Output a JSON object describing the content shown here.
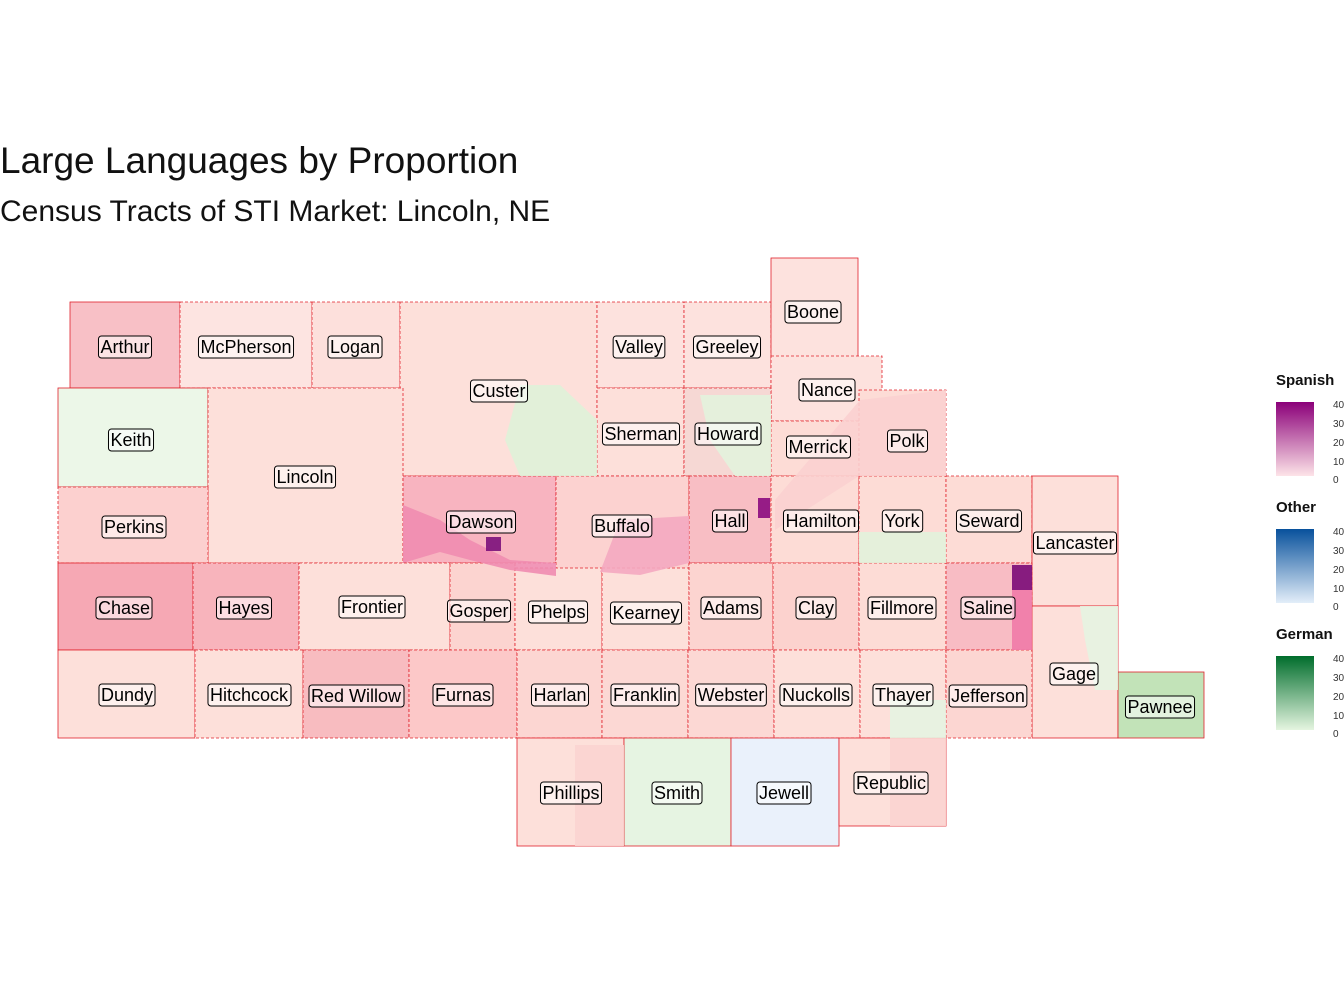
{
  "title": "Large Languages by Proportion",
  "subtitle": "Census Tracts of STI Market: Lincoln, NE",
  "legends": [
    {
      "name": "Spanish",
      "ticks": [
        "40",
        "30",
        "20",
        "10",
        "0"
      ],
      "color_low": "#fde4e8",
      "color_high": "#8b0079"
    },
    {
      "name": "Other",
      "ticks": [
        "40",
        "30",
        "20",
        "10",
        "0"
      ],
      "color_low": "#e3eef9",
      "color_high": "#08519c"
    },
    {
      "name": "German",
      "ticks": [
        "40",
        "30",
        "20",
        "10",
        "0"
      ],
      "color_low": "#e5f5e0",
      "color_high": "#006d2c"
    }
  ],
  "counties": [
    {
      "name": "Arthur",
      "fill": "#f8c0c6"
    },
    {
      "name": "McPherson",
      "fill": "#fde4e1"
    },
    {
      "name": "Logan",
      "fill": "#fde0dc"
    },
    {
      "name": "Custer",
      "fill": "#fde0da"
    },
    {
      "name": "Valley",
      "fill": "#fde2de"
    },
    {
      "name": "Greeley",
      "fill": "#fde2de"
    },
    {
      "name": "Boone",
      "fill": "#fde2de"
    },
    {
      "name": "Nance",
      "fill": "#fde2de"
    },
    {
      "name": "Keith",
      "fill": "#ecf7e8"
    },
    {
      "name": "Lincoln",
      "fill": "#fde0da"
    },
    {
      "name": "Sherman",
      "fill": "#fde0da"
    },
    {
      "name": "Howard",
      "fill": "#f6d8d4"
    },
    {
      "name": "Merrick",
      "fill": "#fddcd6"
    },
    {
      "name": "Polk",
      "fill": "#fddcd6"
    },
    {
      "name": "Perkins",
      "fill": "#fcd0cf"
    },
    {
      "name": "Dawson",
      "fill": "#f8b4c0"
    },
    {
      "name": "Buffalo",
      "fill": "#fcd2d0"
    },
    {
      "name": "Hall",
      "fill": "#f8bec4"
    },
    {
      "name": "Hamilton",
      "fill": "#fddcd6"
    },
    {
      "name": "York",
      "fill": "#fddcd6"
    },
    {
      "name": "Seward",
      "fill": "#fddcd6"
    },
    {
      "name": "Lancaster",
      "fill": "#fde0da"
    },
    {
      "name": "Chase",
      "fill": "#f6a8b4"
    },
    {
      "name": "Hayes",
      "fill": "#f8b4bc"
    },
    {
      "name": "Frontier",
      "fill": "#fde0da"
    },
    {
      "name": "Gosper",
      "fill": "#fcd4d0"
    },
    {
      "name": "Phelps",
      "fill": "#fde0da"
    },
    {
      "name": "Kearney",
      "fill": "#fde0da"
    },
    {
      "name": "Adams",
      "fill": "#fcd4d0"
    },
    {
      "name": "Clay",
      "fill": "#fcd2ce"
    },
    {
      "name": "Fillmore",
      "fill": "#fddcd6"
    },
    {
      "name": "Saline",
      "fill": "#f8bcc4"
    },
    {
      "name": "Gage",
      "fill": "#fde0da"
    },
    {
      "name": "Dundy",
      "fill": "#fde0da"
    },
    {
      "name": "Hitchcock",
      "fill": "#fde0da"
    },
    {
      "name": "Red Willow",
      "fill": "#f8bcc0"
    },
    {
      "name": "Furnas",
      "fill": "#fcc8c8"
    },
    {
      "name": "Harlan",
      "fill": "#fcd6d2"
    },
    {
      "name": "Franklin",
      "fill": "#fcd8d4"
    },
    {
      "name": "Webster",
      "fill": "#fcd8d4"
    },
    {
      "name": "Nuckolls",
      "fill": "#fde0da"
    },
    {
      "name": "Thayer",
      "fill": "#fde0da"
    },
    {
      "name": "Jefferson",
      "fill": "#fcd6d2"
    },
    {
      "name": "Pawnee",
      "fill": "#c2e3b8"
    },
    {
      "name": "Phillips",
      "fill": "#fde0da"
    },
    {
      "name": "Smith",
      "fill": "#e6f4e2"
    },
    {
      "name": "Jewell",
      "fill": "#eaf1fb"
    },
    {
      "name": "Republic",
      "fill": "#fde0da"
    }
  ]
}
